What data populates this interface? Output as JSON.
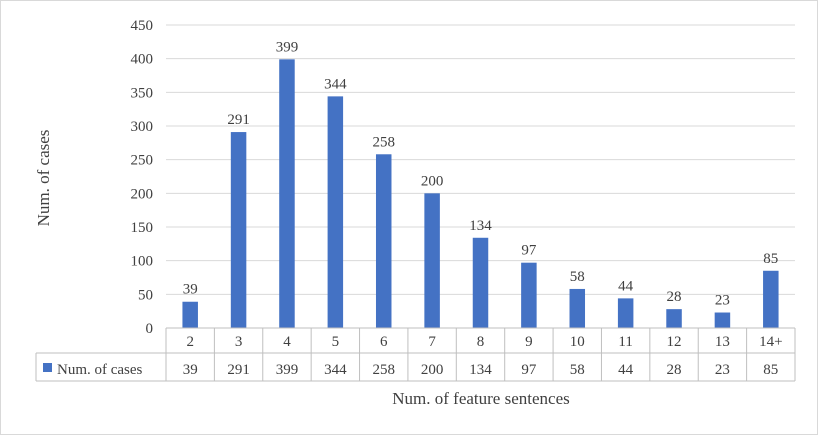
{
  "chart_data": {
    "type": "bar",
    "title": "",
    "xlabel": "Num. of feature sentences",
    "ylabel": "Num. of cases",
    "ylim": [
      0,
      450
    ],
    "y_ticks": [
      "0",
      "50",
      "100",
      "150",
      "200",
      "250",
      "300",
      "350",
      "400",
      "450"
    ],
    "grid": true,
    "legend_position": "data-table",
    "categories": [
      "2",
      "3",
      "4",
      "5",
      "6",
      "7",
      "8",
      "9",
      "10",
      "11",
      "12",
      "13",
      "14+"
    ],
    "series": [
      {
        "name": "Num. of cases",
        "color": "#4472c4",
        "values": [
          39,
          291,
          399,
          344,
          258,
          200,
          134,
          97,
          58,
          44,
          28,
          23,
          85
        ]
      }
    ]
  }
}
